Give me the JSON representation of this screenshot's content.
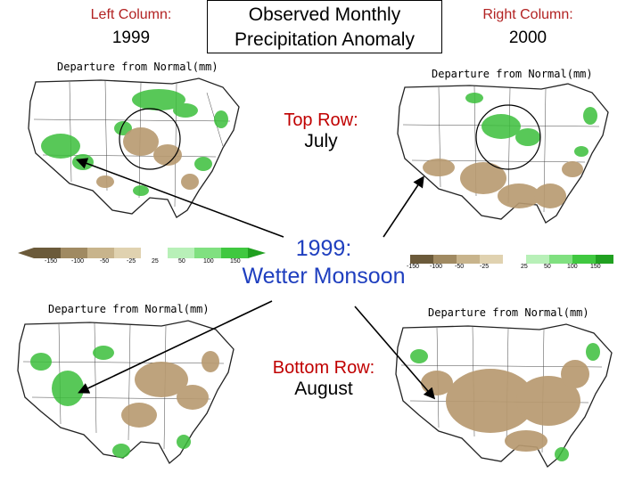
{
  "left_column": {
    "label": "Left Column:",
    "year": "1999"
  },
  "right_column": {
    "label": "Right Column:",
    "year": "2000"
  },
  "title": {
    "line1": "Observed Monthly",
    "line2": "Precipitation Anomaly"
  },
  "maps": {
    "top_left": {
      "label": "Departure from Normal(mm)"
    },
    "top_right": {
      "label": "Departure from Normal(mm)"
    },
    "bottom_left": {
      "label": "Departure from Normal(mm)"
    },
    "bottom_right": {
      "label": "Departure from Normal(mm)"
    }
  },
  "top_row": {
    "label": "Top Row:",
    "month": "July"
  },
  "bottom_row": {
    "label": "Bottom Row:",
    "month": "August"
  },
  "callout_monsoon": {
    "line1": "1999:",
    "line2": "Wetter Monsoon"
  },
  "legend": {
    "ticks": [
      "-150",
      "-100",
      "-50",
      "-25",
      "25",
      "50",
      "100",
      "150"
    ],
    "colors": {
      "dry_dark": "#6b5a3a",
      "dry_mid": "#a08a62",
      "dry_light": "#c8b48c",
      "dry_pale": "#e0d2b0",
      "wet_pale": "#b8f0b8",
      "wet_light": "#80e080",
      "wet_mid": "#40c840",
      "wet_dark": "#20a020"
    }
  },
  "colors": {
    "accent_red": "#b22222",
    "monsoon_blue": "#1f3fbf",
    "dry_fill": "#c2a27a",
    "wet_fill": "#5ad05a"
  }
}
